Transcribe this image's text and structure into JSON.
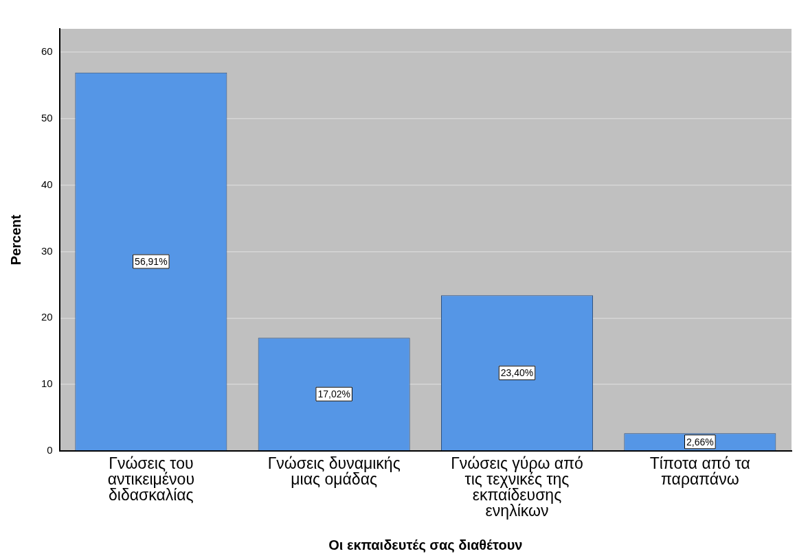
{
  "chart_data": {
    "type": "bar",
    "xlabel": "Οι εκπαιδευτές σας διαθέτουν",
    "ylabel": "Percent",
    "categories": [
      "Γνώσεις του αντικειμένου διδασκαλίας",
      "Γνώσεις δυναμικής μιας ομάδας",
      "Γνώσεις γύρω από τις τεχνικές της εκπαίδευσης ενηλίκων",
      "Τίποτα από τα παραπάνω"
    ],
    "values": [
      56.91,
      17.02,
      23.4,
      2.66
    ],
    "color": "#5596e6",
    "value_labels": [
      "56,91%",
      "17,02%",
      "23,40%",
      "2,66%"
    ],
    "ylim": [
      0,
      63.5
    ],
    "yticks": [
      0,
      10,
      20,
      30,
      40,
      50,
      60
    ],
    "grid": "y"
  }
}
